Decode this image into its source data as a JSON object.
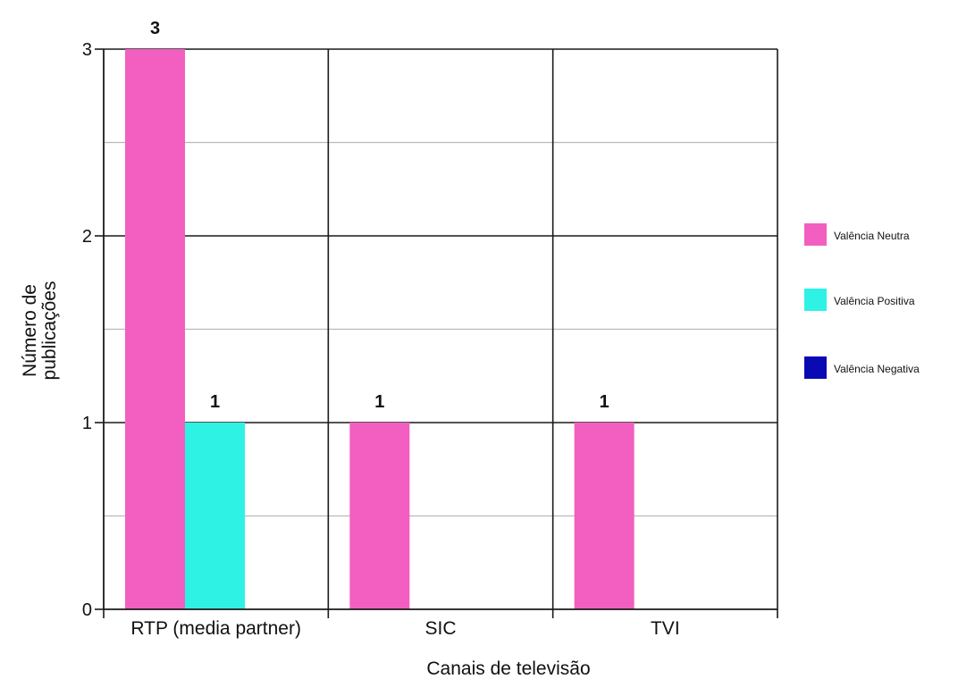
{
  "chart_data": {
    "type": "bar",
    "title": "",
    "xlabel": "Canais de televisão",
    "ylabel_lines": [
      "Número de",
      "publicações"
    ],
    "categories": [
      "RTP (media partner)",
      "SIC",
      "TVI"
    ],
    "series": [
      {
        "name": "Valência Neutra",
        "color": "#f25fc0",
        "values": [
          3,
          1,
          1
        ]
      },
      {
        "name": "Valência Positiva",
        "color": "#2ef2e4",
        "values": [
          1,
          0,
          0
        ]
      },
      {
        "name": "Valência Negativa",
        "color": "#0a0ab5",
        "values": [
          0,
          0,
          0
        ]
      }
    ],
    "data_labels": [
      {
        "category": "RTP (media partner)",
        "series": "Valência Neutra",
        "text": "3"
      },
      {
        "category": "RTP (media partner)",
        "series": "Valência Positiva",
        "text": "1"
      },
      {
        "category": "SIC",
        "series": "Valência Neutra",
        "text": "1"
      },
      {
        "category": "TVI",
        "series": "Valência Neutra",
        "text": "1"
      }
    ],
    "ylim": [
      0,
      3
    ],
    "yticks": [
      "0",
      "1",
      "2",
      "3"
    ],
    "minor_grid_step": 0.5,
    "grid": true,
    "legend_position": "right"
  }
}
